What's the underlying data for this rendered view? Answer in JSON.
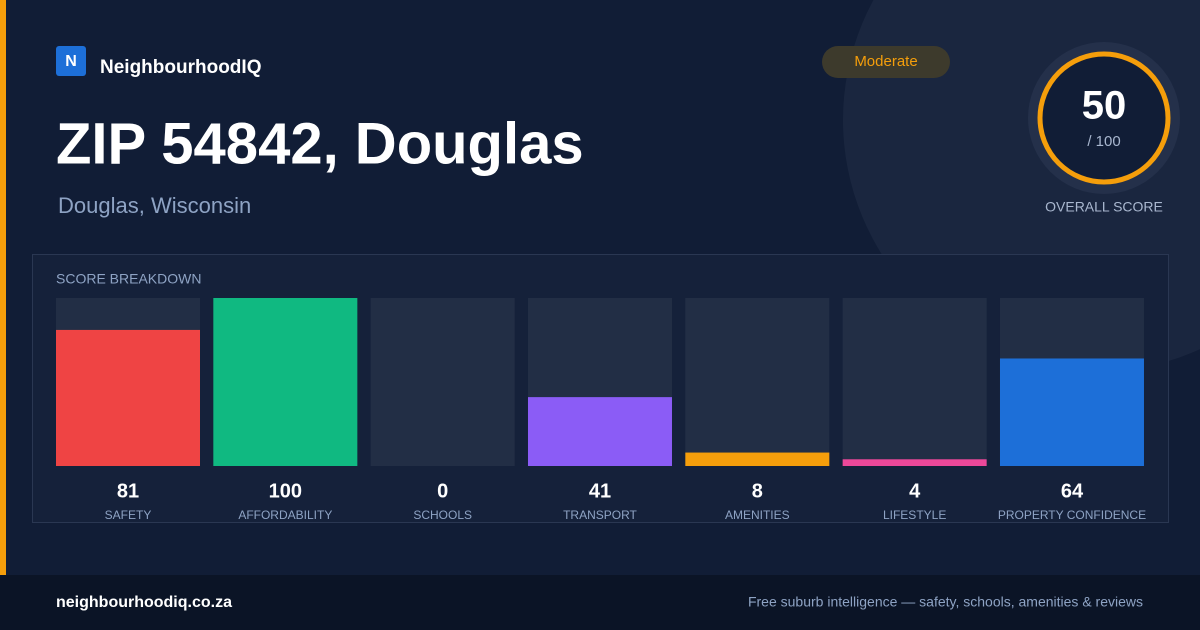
{
  "brand": {
    "logo_letter": "N",
    "name": "NeighbourhoodIQ"
  },
  "header": {
    "title": "ZIP 54842, Douglas",
    "subtitle": "Douglas, Wisconsin",
    "badge": "Moderate"
  },
  "overall": {
    "score": "50",
    "out_of": "/ 100",
    "label": "OVERALL SCORE"
  },
  "chart_data": {
    "type": "bar",
    "title": "SCORE BREAKDOWN",
    "categories": [
      "SAFETY",
      "AFFORDABILITY",
      "SCHOOLS",
      "TRANSPORT",
      "AMENITIES",
      "LIFESTYLE",
      "PROPERTY CONFIDENCE"
    ],
    "values": [
      81,
      100,
      0,
      41,
      8,
      4,
      64
    ],
    "colors": [
      "#ef4444",
      "#10b981",
      "#3b82f6",
      "#8b5cf6",
      "#f59e0b",
      "#ec4899",
      "#1d6fd8"
    ],
    "ylim": [
      0,
      100
    ]
  },
  "footer": {
    "site": "neighbourhoodiq.co.za",
    "tagline": "Free suburb intelligence — safety, schools, amenities & reviews"
  }
}
